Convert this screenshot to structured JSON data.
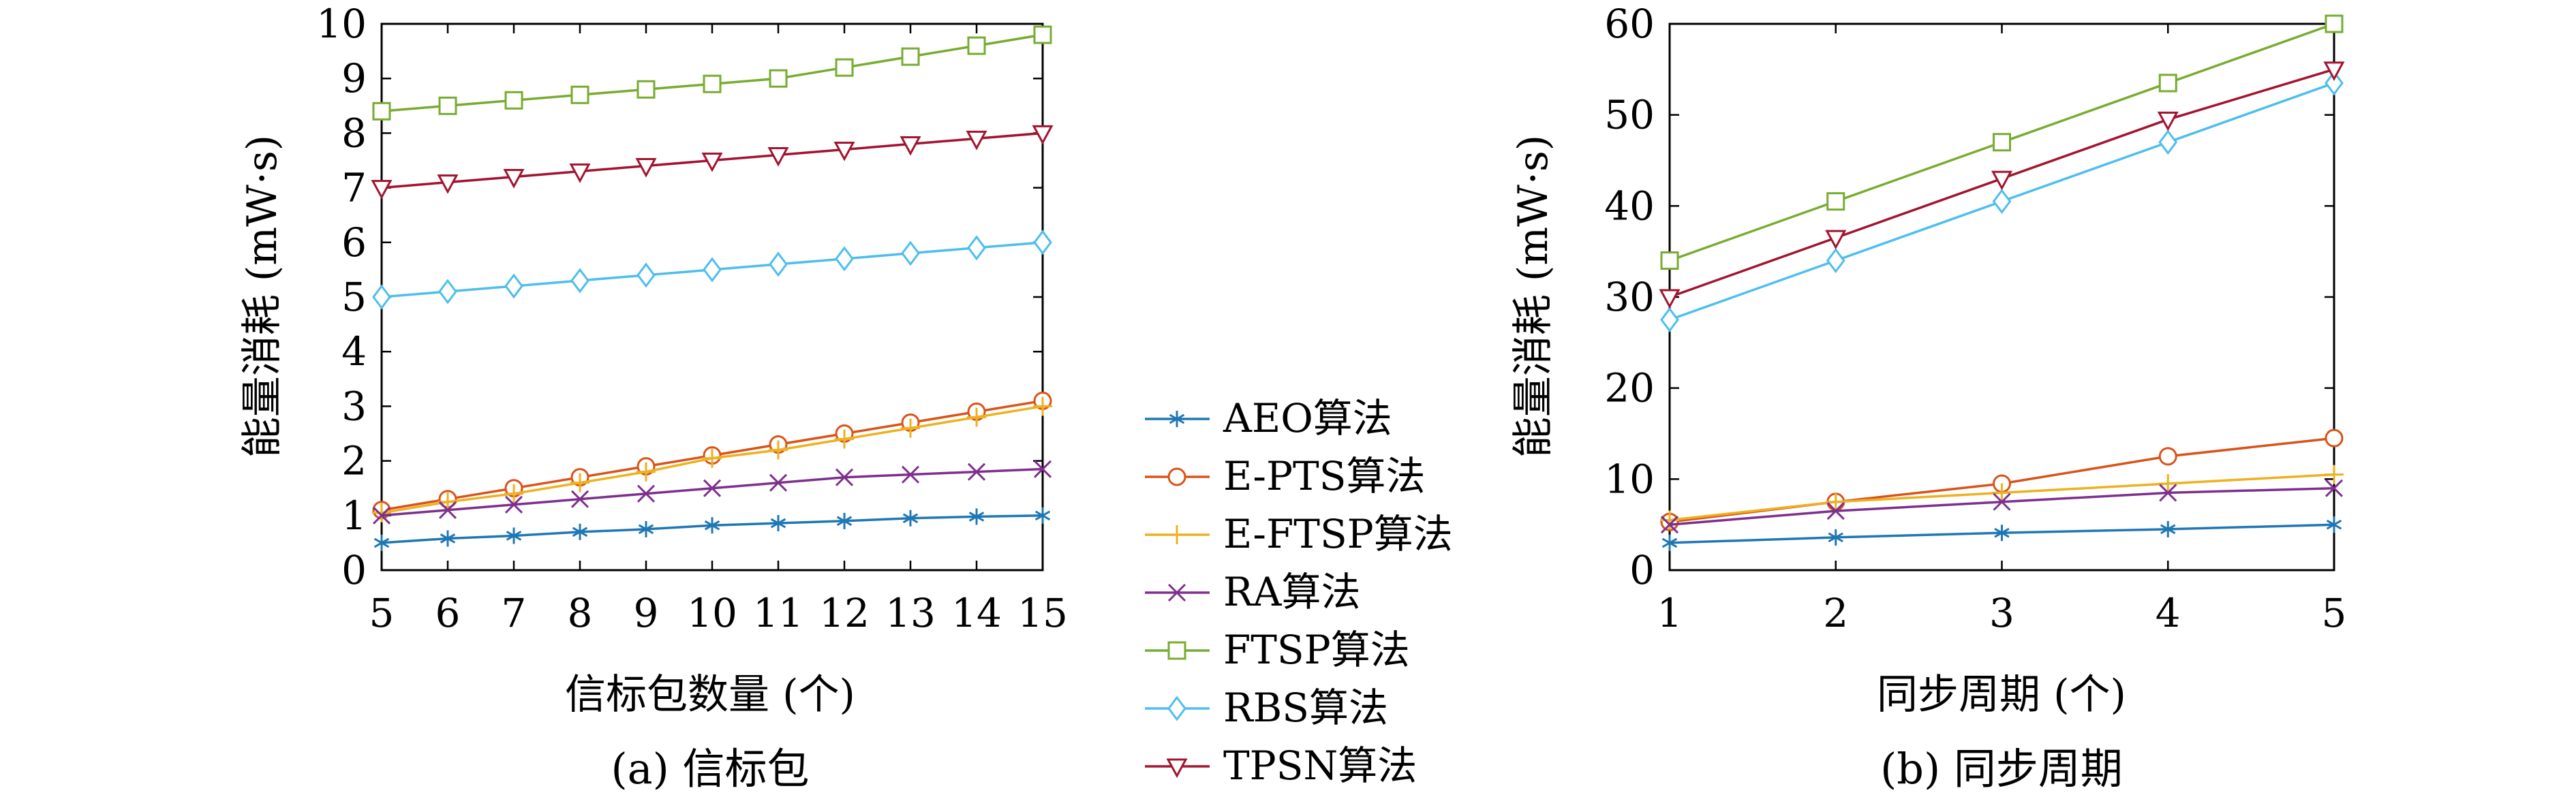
{
  "chart_data": [
    {
      "type": "line",
      "caption": "(a) 信标包",
      "xlabel": "信标包数量 (个)",
      "ylabel": "能量消耗 (mW·s)",
      "x": [
        5,
        6,
        7,
        8,
        9,
        10,
        11,
        12,
        13,
        14,
        15
      ],
      "xlim": [
        5,
        15
      ],
      "ylim": [
        0,
        10
      ],
      "xticks": [
        5,
        6,
        7,
        8,
        9,
        10,
        11,
        12,
        13,
        14,
        15
      ],
      "yticks": [
        0,
        1,
        2,
        3,
        4,
        5,
        6,
        7,
        8,
        9,
        10
      ],
      "series": [
        {
          "name": "AEO算法",
          "marker": "star",
          "color": "#1f77b4",
          "values": [
            0.5,
            0.58,
            0.63,
            0.7,
            0.75,
            0.82,
            0.86,
            0.9,
            0.95,
            0.98,
            1.0
          ]
        },
        {
          "name": "E-PTS算法",
          "marker": "circle",
          "color": "#d95319",
          "values": [
            1.1,
            1.3,
            1.5,
            1.7,
            1.9,
            2.1,
            2.3,
            2.5,
            2.7,
            2.9,
            3.1
          ]
        },
        {
          "name": "E-FTSP算法",
          "marker": "plus",
          "color": "#edb120",
          "values": [
            1.05,
            1.25,
            1.4,
            1.6,
            1.8,
            2.05,
            2.2,
            2.4,
            2.6,
            2.8,
            3.0
          ]
        },
        {
          "name": "RA算法",
          "marker": "x",
          "color": "#7e2f8e",
          "values": [
            1.0,
            1.1,
            1.2,
            1.3,
            1.4,
            1.5,
            1.6,
            1.7,
            1.75,
            1.8,
            1.85
          ]
        },
        {
          "name": "FTSP算法",
          "marker": "square",
          "color": "#77ac30",
          "values": [
            8.4,
            8.5,
            8.6,
            8.7,
            8.8,
            8.9,
            9.0,
            9.2,
            9.4,
            9.6,
            9.8
          ]
        },
        {
          "name": "RBS算法",
          "marker": "diamond",
          "color": "#4dbeee",
          "values": [
            5.0,
            5.1,
            5.2,
            5.3,
            5.4,
            5.5,
            5.6,
            5.7,
            5.8,
            5.9,
            6.0
          ]
        },
        {
          "name": "TPSN算法",
          "marker": "triangle-down",
          "color": "#a2142f",
          "values": [
            7.0,
            7.1,
            7.2,
            7.3,
            7.4,
            7.5,
            7.6,
            7.7,
            7.8,
            7.9,
            8.0
          ]
        }
      ]
    },
    {
      "type": "line",
      "caption": "(b) 同步周期",
      "xlabel": "同步周期 (个)",
      "ylabel": "能量消耗 (mW·s)",
      "x": [
        1,
        2,
        3,
        4,
        5
      ],
      "xlim": [
        1,
        5
      ],
      "ylim": [
        0,
        60
      ],
      "xticks": [
        1,
        2,
        3,
        4,
        5
      ],
      "yticks": [
        0,
        10,
        20,
        30,
        40,
        50,
        60
      ],
      "series": [
        {
          "name": "AEO算法",
          "marker": "star",
          "color": "#1f77b4",
          "values": [
            3.0,
            3.6,
            4.1,
            4.5,
            5.0
          ]
        },
        {
          "name": "E-PTS算法",
          "marker": "circle",
          "color": "#d95319",
          "values": [
            5.3,
            7.5,
            9.5,
            12.5,
            14.5
          ]
        },
        {
          "name": "E-FTSP算法",
          "marker": "plus",
          "color": "#edb120",
          "values": [
            5.5,
            7.5,
            8.5,
            9.5,
            10.5
          ]
        },
        {
          "name": "RA算法",
          "marker": "x",
          "color": "#7e2f8e",
          "values": [
            5.0,
            6.5,
            7.5,
            8.5,
            9.0
          ]
        },
        {
          "name": "FTSP算法",
          "marker": "square",
          "color": "#77ac30",
          "values": [
            34.0,
            40.5,
            47.0,
            53.5,
            60.0
          ]
        },
        {
          "name": "RBS算法",
          "marker": "diamond",
          "color": "#4dbeee",
          "values": [
            27.5,
            34.0,
            40.5,
            47.0,
            53.5
          ]
        },
        {
          "name": "TPSN算法",
          "marker": "triangle-down",
          "color": "#a2142f",
          "values": [
            30.0,
            36.5,
            43.0,
            49.5,
            55.0
          ]
        }
      ]
    }
  ],
  "legend": {
    "placement": "center",
    "items": [
      "AEO算法",
      "E-PTS算法",
      "E-FTSP算法",
      "RA算法",
      "FTSP算法",
      "RBS算法",
      "TPSN算法"
    ]
  }
}
